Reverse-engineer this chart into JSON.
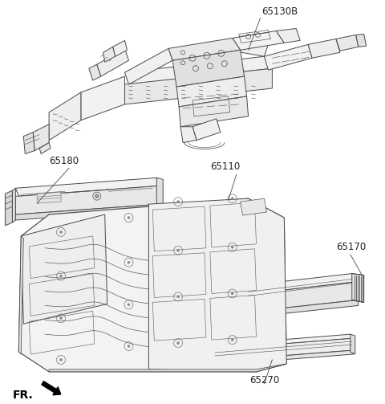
{
  "bg_color": "#ffffff",
  "line_color": "#4a4a4a",
  "line_width": 0.7,
  "label_fontsize": 8.5,
  "figsize": [
    4.8,
    5.03
  ],
  "dpi": 100
}
